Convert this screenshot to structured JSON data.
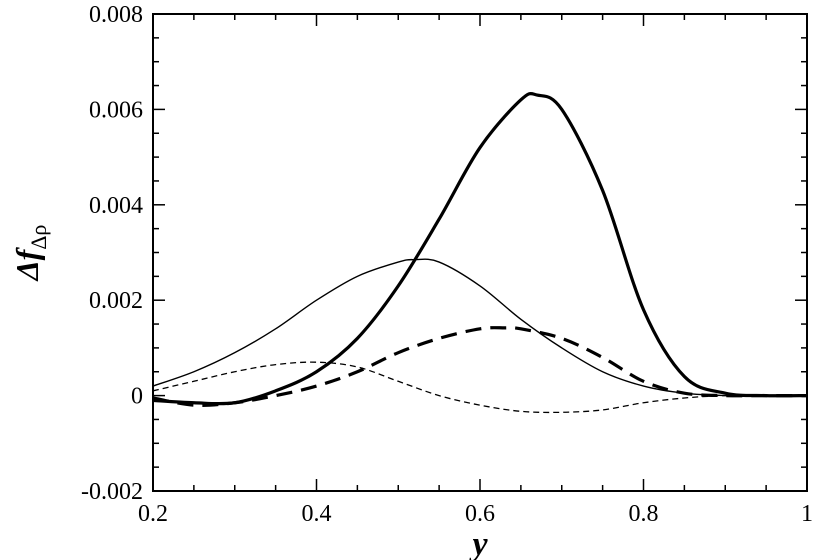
{
  "chart_data": {
    "type": "line",
    "xlim": [
      0.2,
      1.0
    ],
    "ylim": [
      -0.002,
      0.008
    ],
    "x_ticks": [
      "0.2",
      "0.4",
      "0.6",
      "0.8",
      "1"
    ],
    "y_ticks": [
      "-0.002",
      "0",
      "0.002",
      "0.004",
      "0.006",
      "0.008"
    ],
    "xlabel": "y",
    "ylabel_main": "Δf",
    "ylabel_sub": "Δρ",
    "grid": false,
    "legend": "none",
    "series": [
      {
        "style": "thick-solid",
        "x": [
          0.2,
          0.25,
          0.3,
          0.35,
          0.4,
          0.45,
          0.5,
          0.55,
          0.6,
          0.65,
          0.67,
          0.7,
          0.75,
          0.8,
          0.85,
          0.9,
          0.95,
          1.0
        ],
        "y": [
          -0.0001,
          -0.00015,
          -0.00015,
          0.0001,
          0.0005,
          0.0012,
          0.0023,
          0.0037,
          0.0052,
          0.0062,
          0.0063,
          0.006,
          0.0043,
          0.0018,
          0.0004,
          5e-05,
          0.0,
          0.0
        ]
      },
      {
        "style": "thin-solid",
        "x": [
          0.2,
          0.25,
          0.3,
          0.35,
          0.4,
          0.45,
          0.5,
          0.52,
          0.55,
          0.6,
          0.65,
          0.7,
          0.75,
          0.8,
          0.85,
          0.9,
          0.95,
          1.0
        ],
        "y": [
          0.0002,
          0.0005,
          0.0009,
          0.0014,
          0.002,
          0.0025,
          0.0028,
          0.00285,
          0.0028,
          0.0023,
          0.0016,
          0.001,
          0.0005,
          0.0002,
          5e-05,
          0.0,
          0.0,
          0.0
        ]
      },
      {
        "style": "thick-dashed",
        "x": [
          0.2,
          0.25,
          0.3,
          0.35,
          0.4,
          0.45,
          0.5,
          0.55,
          0.6,
          0.63,
          0.65,
          0.7,
          0.75,
          0.8,
          0.85,
          0.9,
          0.95,
          1.0
        ],
        "y": [
          -5e-05,
          -0.0002,
          -0.00015,
          0.0,
          0.0002,
          0.0005,
          0.0009,
          0.0012,
          0.0014,
          0.00142,
          0.0014,
          0.0012,
          0.0008,
          0.0003,
          5e-05,
          0.0,
          0.0,
          0.0
        ]
      },
      {
        "style": "thin-dashed",
        "x": [
          0.2,
          0.25,
          0.3,
          0.35,
          0.4,
          0.45,
          0.5,
          0.55,
          0.6,
          0.65,
          0.7,
          0.75,
          0.8,
          0.85,
          0.9,
          0.95,
          1.0
        ],
        "y": [
          0.0001,
          0.0003,
          0.0005,
          0.00065,
          0.0007,
          0.0006,
          0.0003,
          0.0,
          -0.0002,
          -0.00033,
          -0.00035,
          -0.0003,
          -0.00015,
          -5e-05,
          0.0,
          0.0,
          0.0
        ]
      }
    ]
  }
}
